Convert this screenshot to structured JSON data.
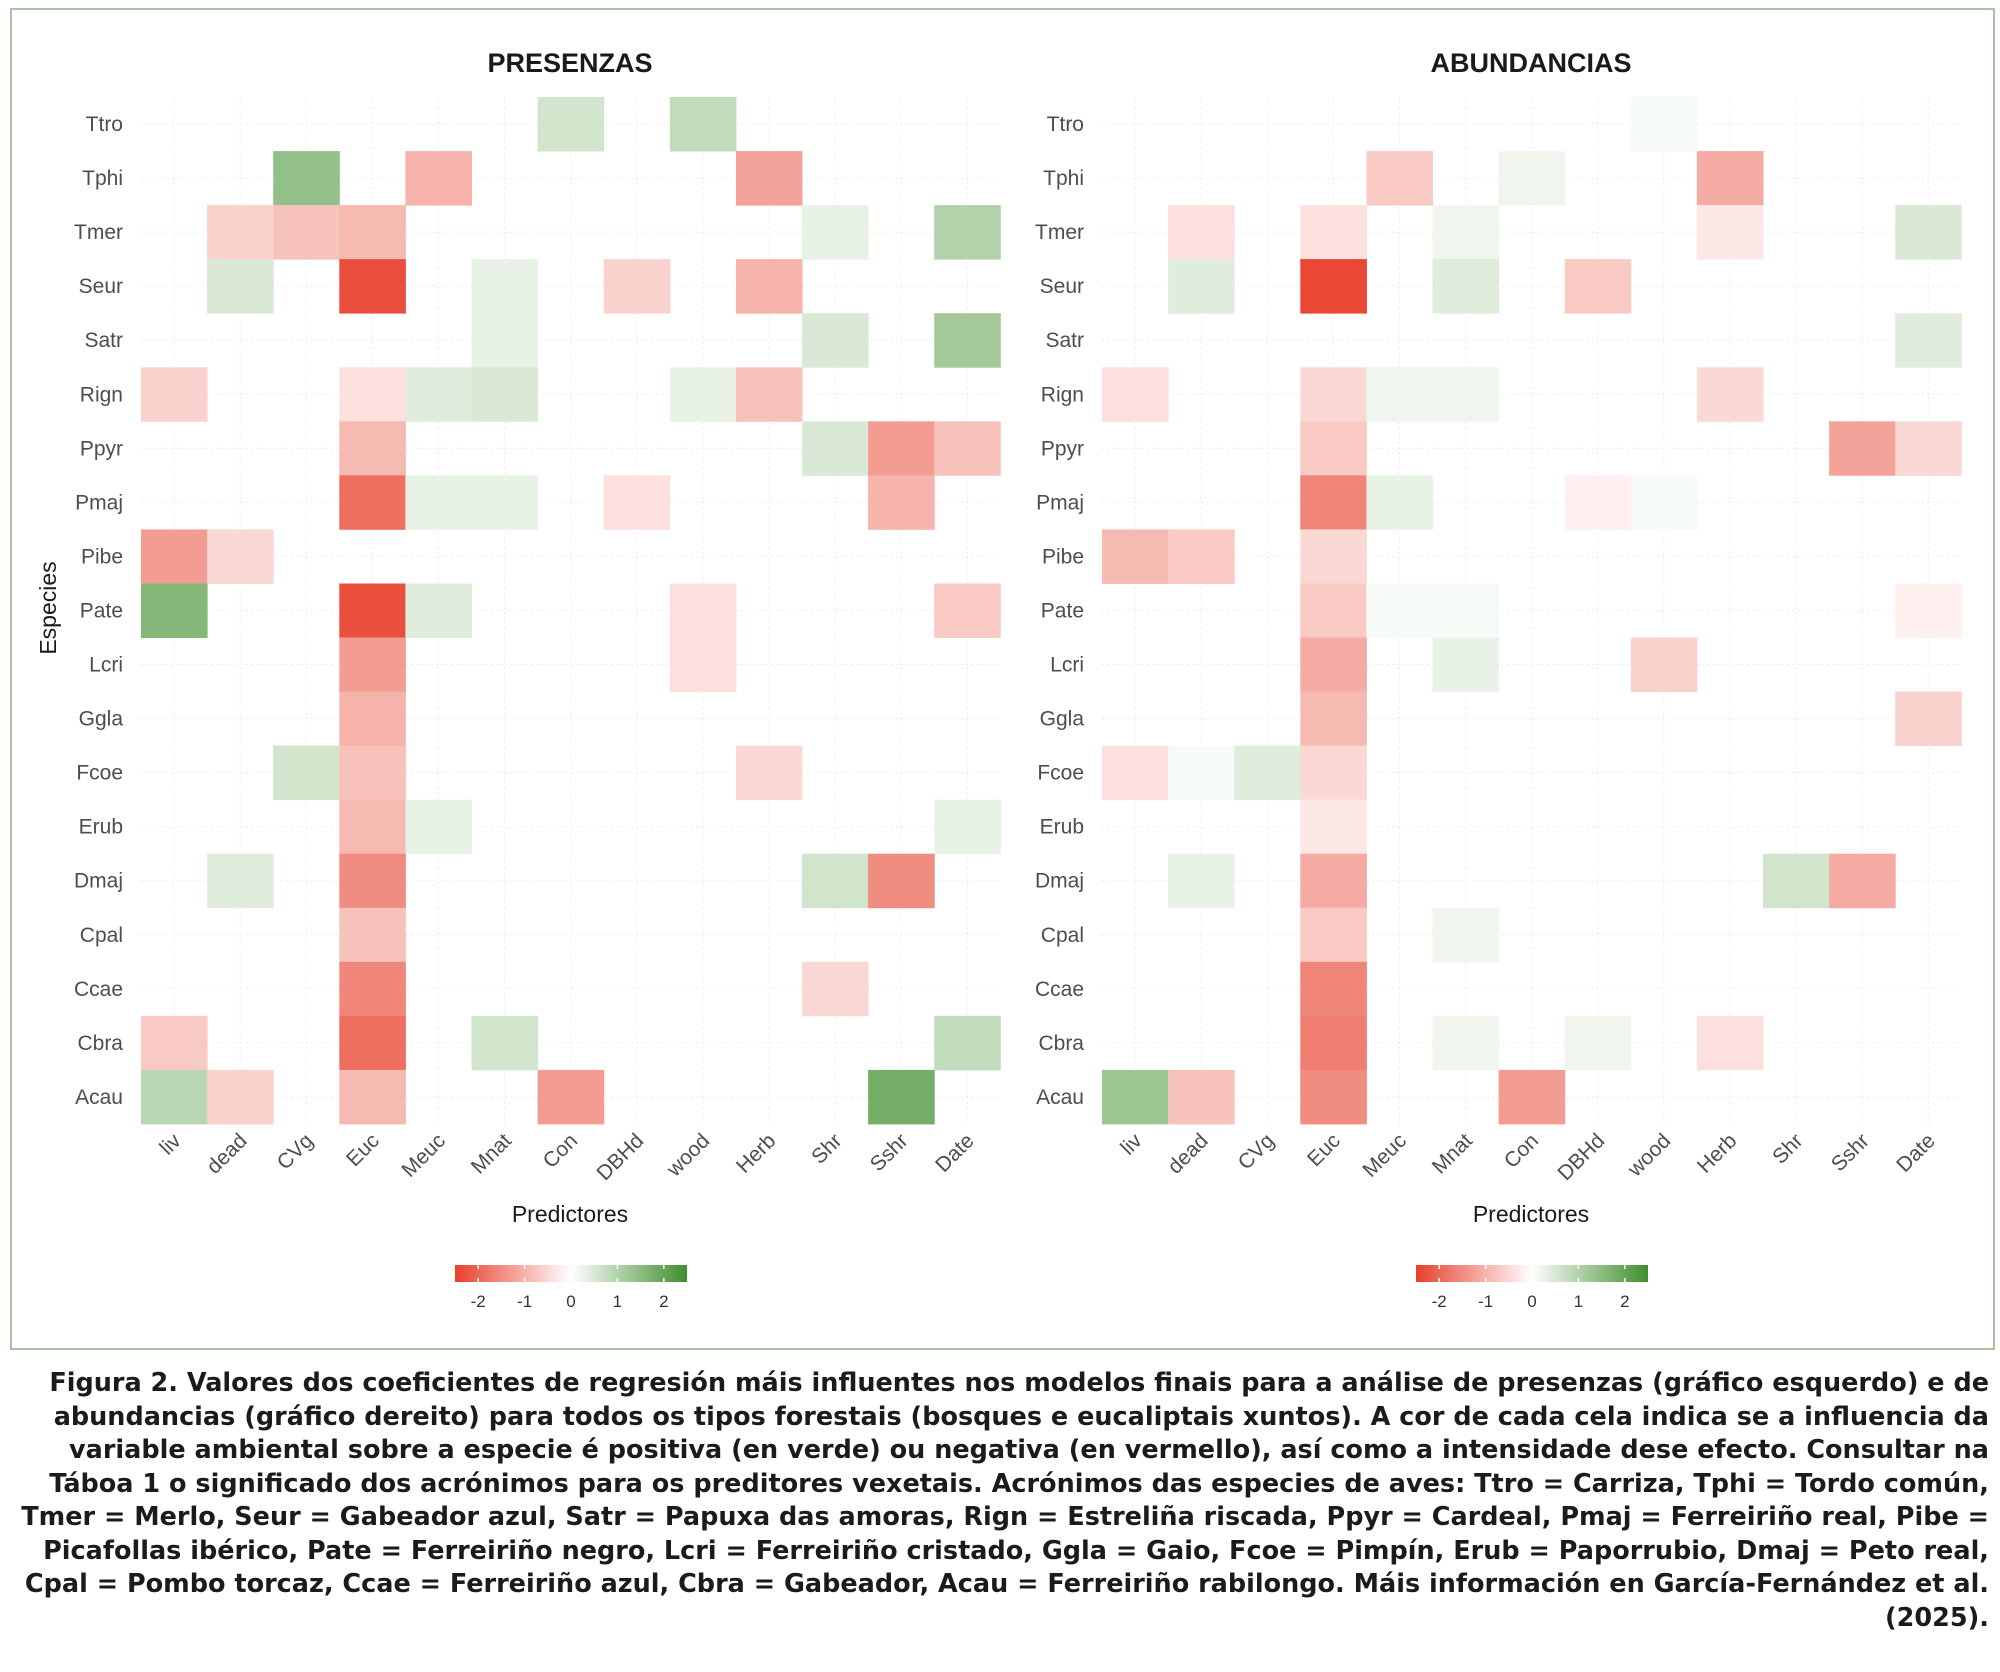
{
  "colors": {
    "negative": "#e8402d",
    "neutral": "#ffffff",
    "positive": "#3f8f2c",
    "border": "#a9c4a2"
  },
  "caption": "Figura 2. Valores dos coeficientes de regresión máis influentes nos modelos finais para a análise de presenzas (gráfico esquerdo) e de abundancias (gráfico dereito) para todos os tipos forestais (bosques e eucaliptais xuntos). A cor de cada cela indica se a influencia da variable ambiental sobre a especie é positiva (en verde) ou negativa (en vermello), así como a intensidade dese efecto. Consultar na Táboa 1 o significado dos acrónimos para os preditores vexetais. Acrónimos das especies de aves: Ttro = Carriza, Tphi = Tordo común, Tmer = Merlo, Seur = Gabeador azul, Satr = Papuxa das amoras, Rign = Estreliña riscada, Ppyr = Cardeal, Pmaj = Ferreiriño real, Pibe = Picafollas ibérico, Pate = Ferreiriño negro, Lcri = Ferreiriño cristado, Ggla = Gaio, Fcoe = Pimpín, Erub = Paporrubio, Dmaj = Peto real, Cpal = Pombo torcaz, Ccae = Ferreiriño azul, Cbra = Gabeador, Acau = Ferreiriño rabilongo. Máis información en García-Fernández et al. (2025).",
  "chart_data": [
    {
      "type": "heatmap",
      "title": "PRESENZAS",
      "xlabel": "Predictores",
      "ylabel": "Especies",
      "x": [
        "liv",
        "dead",
        "CVg",
        "Euc",
        "Meuc",
        "Mnat",
        "Con",
        "DBHd",
        "wood",
        "Herb",
        "Shr",
        "Sshr",
        "Date"
      ],
      "y": [
        "Ttro",
        "Tphi",
        "Tmer",
        "Seur",
        "Satr",
        "Rign",
        "Ppyr",
        "Pmaj",
        "Pibe",
        "Pate",
        "Lcri",
        "Ggla",
        "Fcoe",
        "Erub",
        "Dmaj",
        "Cpal",
        "Ccae",
        "Cbra",
        "Acau"
      ],
      "colorbar": {
        "range": [
          -2.5,
          2.5
        ],
        "ticks": [
          -2,
          -1,
          0,
          1,
          2
        ]
      },
      "values": [
        [
          null,
          null,
          null,
          null,
          null,
          null,
          0.6,
          null,
          0.8,
          null,
          null,
          null,
          null
        ],
        [
          null,
          null,
          1.4,
          null,
          -1.0,
          null,
          null,
          null,
          null,
          -1.2,
          null,
          null,
          null
        ],
        [
          null,
          -0.6,
          -0.8,
          -0.9,
          null,
          null,
          null,
          null,
          null,
          null,
          0.3,
          null,
          1.0
        ],
        [
          null,
          0.5,
          null,
          -2.3,
          null,
          0.3,
          null,
          -0.6,
          null,
          -1.0,
          null,
          null,
          null
        ],
        [
          null,
          null,
          null,
          null,
          null,
          0.3,
          null,
          null,
          null,
          null,
          0.5,
          null,
          1.2
        ],
        [
          -0.6,
          null,
          null,
          -0.4,
          0.4,
          0.5,
          null,
          null,
          0.3,
          -0.8,
          null,
          null,
          null
        ],
        [
          null,
          null,
          null,
          -0.9,
          null,
          null,
          null,
          null,
          null,
          null,
          0.5,
          -1.3,
          -0.8
        ],
        [
          null,
          null,
          null,
          -1.9,
          0.3,
          0.3,
          null,
          -0.4,
          null,
          null,
          null,
          -1.0,
          null
        ],
        [
          -1.3,
          -0.5,
          null,
          null,
          null,
          null,
          null,
          null,
          null,
          null,
          null,
          null,
          null
        ],
        [
          1.6,
          null,
          null,
          -2.3,
          0.4,
          null,
          null,
          null,
          -0.4,
          null,
          null,
          null,
          -0.7
        ],
        [
          null,
          null,
          null,
          -1.3,
          null,
          null,
          null,
          null,
          -0.4,
          null,
          null,
          null,
          null
        ],
        [
          null,
          null,
          null,
          -1.0,
          null,
          null,
          null,
          null,
          null,
          null,
          null,
          null,
          null
        ],
        [
          null,
          null,
          0.6,
          -0.8,
          null,
          null,
          null,
          null,
          null,
          -0.5,
          null,
          null,
          null
        ],
        [
          null,
          null,
          null,
          -0.9,
          0.3,
          null,
          null,
          null,
          null,
          null,
          null,
          null,
          0.3
        ],
        [
          null,
          0.4,
          null,
          -1.5,
          null,
          null,
          null,
          null,
          null,
          null,
          0.6,
          -1.5,
          null
        ],
        [
          null,
          null,
          null,
          -0.8,
          null,
          null,
          null,
          null,
          null,
          null,
          null,
          null,
          null
        ],
        [
          null,
          null,
          null,
          -1.6,
          null,
          null,
          null,
          null,
          null,
          null,
          -0.5,
          null,
          null
        ],
        [
          -0.7,
          null,
          null,
          -1.9,
          null,
          0.6,
          null,
          null,
          null,
          null,
          null,
          null,
          0.8
        ],
        [
          0.9,
          -0.6,
          null,
          -0.9,
          null,
          null,
          -1.3,
          null,
          null,
          null,
          null,
          1.8,
          null
        ]
      ]
    },
    {
      "type": "heatmap",
      "title": "ABUNDANCIAS",
      "xlabel": "Predictores",
      "ylabel": "",
      "x": [
        "liv",
        "dead",
        "CVg",
        "Euc",
        "Meuc",
        "Mnat",
        "Con",
        "DBHd",
        "wood",
        "Herb",
        "Shr",
        "Sshr",
        "Date"
      ],
      "y": [
        "Ttro",
        "Tphi",
        "Tmer",
        "Seur",
        "Satr",
        "Rign",
        "Ppyr",
        "Pmaj",
        "Pibe",
        "Pate",
        "Lcri",
        "Ggla",
        "Fcoe",
        "Erub",
        "Dmaj",
        "Cpal",
        "Ccae",
        "Cbra",
        "Acau"
      ],
      "colorbar": {
        "range": [
          -2.5,
          2.5
        ],
        "ticks": [
          -2,
          -1,
          0,
          1,
          2
        ]
      },
      "values": [
        [
          null,
          null,
          null,
          null,
          null,
          null,
          null,
          null,
          0.1,
          null,
          null,
          null,
          null
        ],
        [
          null,
          null,
          null,
          null,
          -0.7,
          null,
          0.2,
          null,
          null,
          -1.1,
          null,
          null,
          null
        ],
        [
          null,
          -0.4,
          null,
          -0.4,
          null,
          0.2,
          null,
          null,
          null,
          -0.3,
          null,
          null,
          0.5
        ],
        [
          null,
          0.4,
          null,
          -2.4,
          null,
          0.4,
          null,
          -0.7,
          null,
          null,
          null,
          null,
          null
        ],
        [
          null,
          null,
          null,
          null,
          null,
          null,
          null,
          null,
          null,
          null,
          null,
          null,
          0.4
        ],
        [
          -0.4,
          null,
          null,
          -0.5,
          0.2,
          0.2,
          null,
          null,
          null,
          -0.5,
          null,
          null,
          null
        ],
        [
          null,
          null,
          null,
          -0.7,
          null,
          null,
          null,
          null,
          null,
          null,
          null,
          -1.2,
          -0.5
        ],
        [
          null,
          null,
          null,
          -1.6,
          0.3,
          null,
          null,
          -0.2,
          0.1,
          null,
          null,
          null,
          null
        ],
        [
          -0.9,
          -0.7,
          null,
          -0.5,
          null,
          null,
          null,
          null,
          null,
          null,
          null,
          null,
          null
        ],
        [
          null,
          null,
          null,
          -0.7,
          0.1,
          0.1,
          null,
          null,
          null,
          null,
          null,
          null,
          -0.2
        ],
        [
          null,
          null,
          null,
          -1.1,
          null,
          0.3,
          null,
          null,
          -0.6,
          null,
          null,
          null,
          null
        ],
        [
          null,
          null,
          null,
          -0.9,
          null,
          null,
          null,
          null,
          null,
          null,
          null,
          null,
          -0.6
        ],
        [
          -0.4,
          0.1,
          0.4,
          -0.5,
          null,
          null,
          null,
          null,
          null,
          null,
          null,
          null,
          null
        ],
        [
          null,
          null,
          null,
          -0.3,
          null,
          null,
          null,
          null,
          null,
          null,
          null,
          null,
          null
        ],
        [
          null,
          0.3,
          null,
          -1.1,
          null,
          null,
          null,
          null,
          null,
          null,
          0.6,
          -1.1,
          null
        ],
        [
          null,
          null,
          null,
          -0.7,
          null,
          0.2,
          null,
          null,
          null,
          null,
          null,
          null,
          null
        ],
        [
          null,
          null,
          null,
          -1.6,
          null,
          null,
          null,
          null,
          null,
          null,
          null,
          null,
          null
        ],
        [
          null,
          null,
          null,
          -1.7,
          null,
          0.2,
          null,
          0.2,
          null,
          -0.4,
          null,
          null,
          null
        ],
        [
          1.3,
          -0.8,
          null,
          -1.5,
          null,
          null,
          -1.3,
          null,
          null,
          null,
          null,
          null,
          null
        ]
      ]
    }
  ]
}
